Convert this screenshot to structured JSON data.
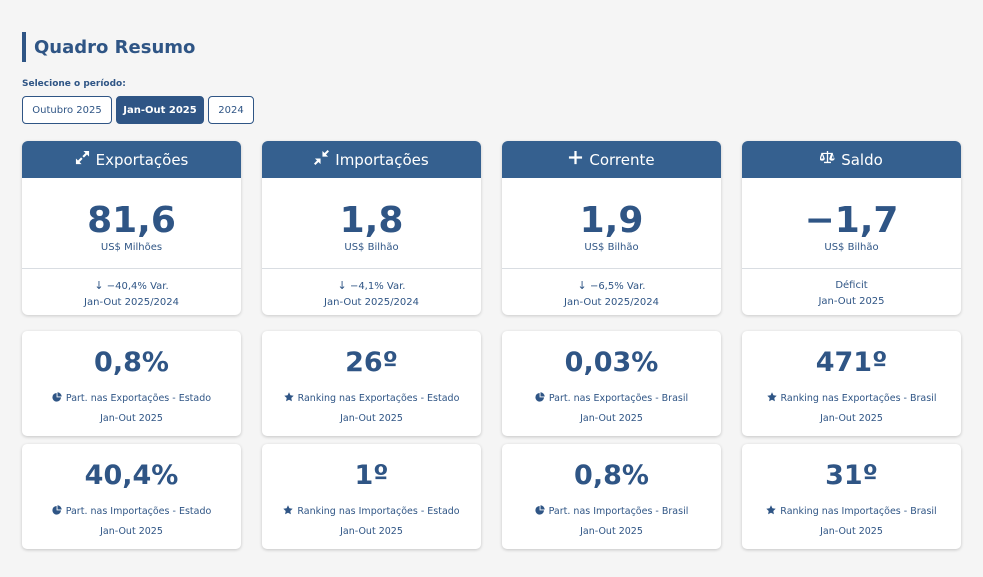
{
  "header": {
    "title": "Quadro Resumo"
  },
  "period": {
    "label": "Selecione o período:",
    "options": [
      "Outubro 2025",
      "Jan-Out 2025",
      "2024"
    ],
    "selected": "Jan-Out 2025"
  },
  "main_cards": [
    {
      "title": "Exportações",
      "icon": "expand-arrows-icon",
      "value": "81,6",
      "unit": "US$ Milhões",
      "foot_line1": "−40,4% Var.",
      "foot_arrow": "↓",
      "foot_line2": "Jan-Out 2025/2024"
    },
    {
      "title": "Importações",
      "icon": "compress-arrows-icon",
      "value": "1,8",
      "unit": "US$ Bilhão",
      "foot_line1": "−4,1% Var.",
      "foot_arrow": "↓",
      "foot_line2": "Jan-Out 2025/2024"
    },
    {
      "title": "Corrente",
      "icon": "plus-icon",
      "value": "1,9",
      "unit": "US$ Bilhão",
      "foot_line1": "−6,5% Var.",
      "foot_arrow": "↓",
      "foot_line2": "Jan-Out 2025/2024"
    },
    {
      "title": "Saldo",
      "icon": "balance-scale-icon",
      "value": "−1,7",
      "unit": "US$ Bilhão",
      "foot_line1": "Déficit",
      "foot_arrow": "",
      "foot_line2": "Jan-Out 2025"
    }
  ],
  "small_cards": [
    {
      "value": "0,8%",
      "icon": "pie-chart-icon",
      "label": "Part. nas Exportações - Estado",
      "period": "Jan-Out 2025"
    },
    {
      "value": "26º",
      "icon": "star-icon",
      "label": "Ranking nas Exportações - Estado",
      "period": "Jan-Out 2025"
    },
    {
      "value": "0,03%",
      "icon": "pie-chart-icon",
      "label": "Part. nas Exportações - Brasil",
      "period": "Jan-Out 2025"
    },
    {
      "value": "471º",
      "icon": "star-icon",
      "label": "Ranking nas Exportações - Brasil",
      "period": "Jan-Out 2025"
    },
    {
      "value": "40,4%",
      "icon": "pie-chart-icon",
      "label": "Part. nas Importações - Estado",
      "period": "Jan-Out 2025"
    },
    {
      "value": "1º",
      "icon": "star-icon",
      "label": "Ranking nas Importações - Estado",
      "period": "Jan-Out 2025"
    },
    {
      "value": "0,8%",
      "icon": "pie-chart-icon",
      "label": "Part. nas Importações - Brasil",
      "period": "Jan-Out 2025"
    },
    {
      "value": "31º",
      "icon": "star-icon",
      "label": "Ranking nas Importações - Brasil",
      "period": "Jan-Out 2025"
    }
  ],
  "colors": {
    "primary": "#2f5585",
    "header_bg": "#35608f",
    "background": "#f5f5f5"
  }
}
